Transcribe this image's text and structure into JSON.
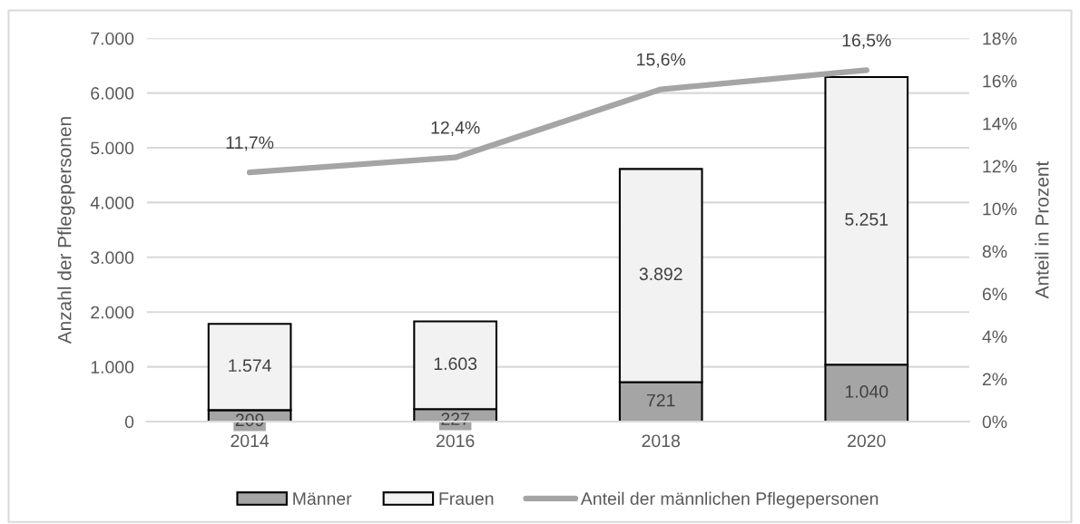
{
  "chart_data": {
    "type": "bar",
    "stacked": true,
    "categories": [
      "2014",
      "2016",
      "2018",
      "2020"
    ],
    "series": [
      {
        "name": "Männer",
        "color": "#a5a5a5",
        "values": [
          209,
          227,
          721,
          1040
        ],
        "value_labels": [
          "209",
          "227",
          "721",
          "1.040"
        ]
      },
      {
        "name": "Frauen",
        "color": "#f2f2f2",
        "values": [
          1574,
          1603,
          3892,
          5251
        ],
        "value_labels": [
          "1.574",
          "1.603",
          "3.892",
          "5.251"
        ]
      },
      {
        "name": "Anteil der männlichen Pflegepersonen",
        "type": "line",
        "axis": "y2",
        "color": "#a5a5a5",
        "values": [
          11.7,
          12.4,
          15.6,
          16.5
        ],
        "value_labels": [
          "11,7%",
          "12,4%",
          "15,6%",
          "16,5%"
        ]
      }
    ],
    "ylabel": "Anzahl der Pflegepersonen",
    "y2label": "Anteil in Prozent",
    "ylim": [
      0,
      7000
    ],
    "yticks": [
      {
        "value": 0,
        "label": "0"
      },
      {
        "value": 1000,
        "label": "1.000"
      },
      {
        "value": 2000,
        "label": "2.000"
      },
      {
        "value": 3000,
        "label": "3.000"
      },
      {
        "value": 4000,
        "label": "4.000"
      },
      {
        "value": 5000,
        "label": "5.000"
      },
      {
        "value": 6000,
        "label": "6.000"
      },
      {
        "value": 7000,
        "label": "7.000"
      }
    ],
    "y2lim": [
      0,
      18
    ],
    "y2ticks": [
      {
        "value": 0,
        "label": "0%"
      },
      {
        "value": 2,
        "label": "2%"
      },
      {
        "value": 4,
        "label": "4%"
      },
      {
        "value": 6,
        "label": "6%"
      },
      {
        "value": 8,
        "label": "8%"
      },
      {
        "value": 10,
        "label": "10%"
      },
      {
        "value": 12,
        "label": "12%"
      },
      {
        "value": 14,
        "label": "14%"
      },
      {
        "value": 16,
        "label": "16%"
      },
      {
        "value": 18,
        "label": "18%"
      }
    ],
    "grid": "y",
    "legend": "bottom"
  }
}
